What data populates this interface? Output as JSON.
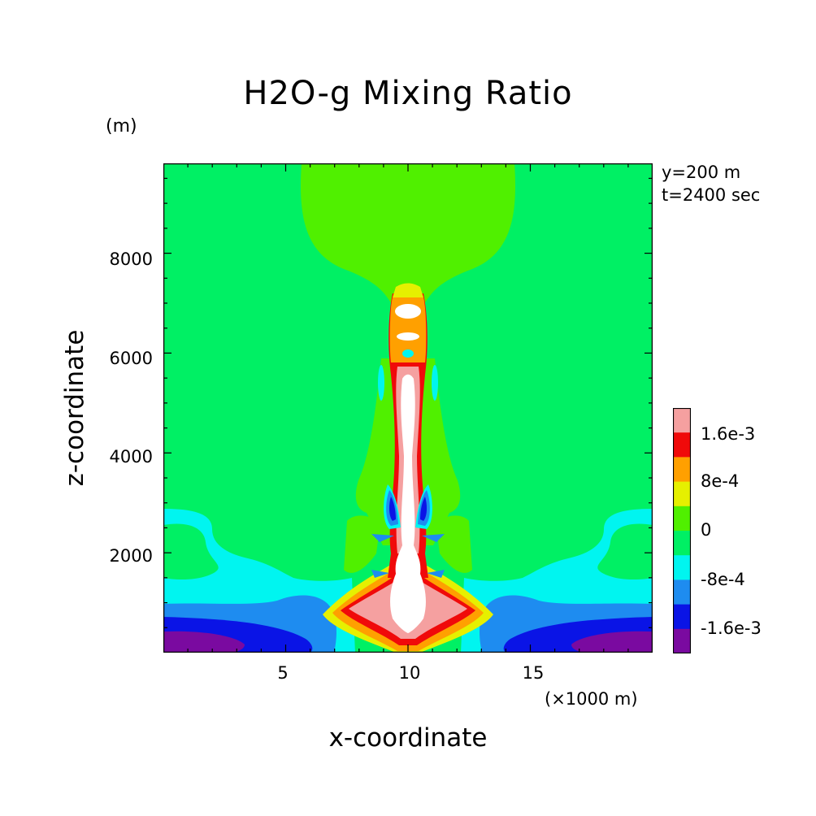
{
  "chart_data": {
    "type": "heatmap",
    "subtype": "filled-contour",
    "title": "H2O-g Mixing Ratio",
    "xlabel": "x-coordinate",
    "ylabel": "z-coordinate",
    "x_unit": "(×1000 m)",
    "y_unit": "(m)",
    "annotations": [
      "y=200 m",
      "t=2400 sec"
    ],
    "xlim": [
      0,
      20
    ],
    "ylim": [
      0,
      9800
    ],
    "x_ticks": [
      5,
      10,
      15
    ],
    "x_tick_labels": [
      "5",
      "10",
      "15"
    ],
    "y_ticks": [
      2000,
      4000,
      6000,
      8000
    ],
    "y_tick_labels": [
      "2000",
      "4000",
      "6000",
      "8000"
    ],
    "colorbar": {
      "levels": [
        -0.0024,
        -0.0016,
        -0.0008,
        0,
        0.0008,
        0.0016,
        0.0024
      ],
      "bands": [
        {
          "color": "#7a0aa0"
        },
        {
          "color": "#0a14e6"
        },
        {
          "color": "#1e8cf0"
        },
        {
          "color": "#00f5f0"
        },
        {
          "color": "#00f064"
        },
        {
          "color": "#50f000"
        },
        {
          "color": "#e6f000"
        },
        {
          "color": "#ffa000"
        },
        {
          "color": "#f00a0a"
        },
        {
          "color": "#f5a0a0"
        }
      ],
      "labels": [
        "1.6e-3",
        "8e-4",
        "0",
        "-8e-4",
        "-1.6e-3"
      ]
    },
    "regions": [
      {
        "name": "background",
        "level": "0 to 4e-4"
      },
      {
        "name": "upper-dome",
        "level": "4e-4 to 8e-4",
        "x_range": [
          6.3,
          13.7
        ],
        "z_range": [
          7000,
          9800
        ]
      },
      {
        "name": "plume-core",
        "level": "> 2.4e-3",
        "x_center": 10,
        "z_range": [
          600,
          7000
        ]
      },
      {
        "name": "lower-left-layer",
        "level": "-2.4e-3 to -1.6e-3",
        "x_range": [
          0,
          3.5
        ],
        "z_range": [
          0,
          400
        ]
      },
      {
        "name": "lower-right-layer",
        "level": "-2.4e-3 to -1.6e-3",
        "x_range": [
          16.5,
          20
        ],
        "z_range": [
          0,
          400
        ]
      },
      {
        "name": "cyan-band",
        "level": "-8e-4 to 0",
        "z_range": [
          1000,
          2900
        ]
      }
    ]
  }
}
